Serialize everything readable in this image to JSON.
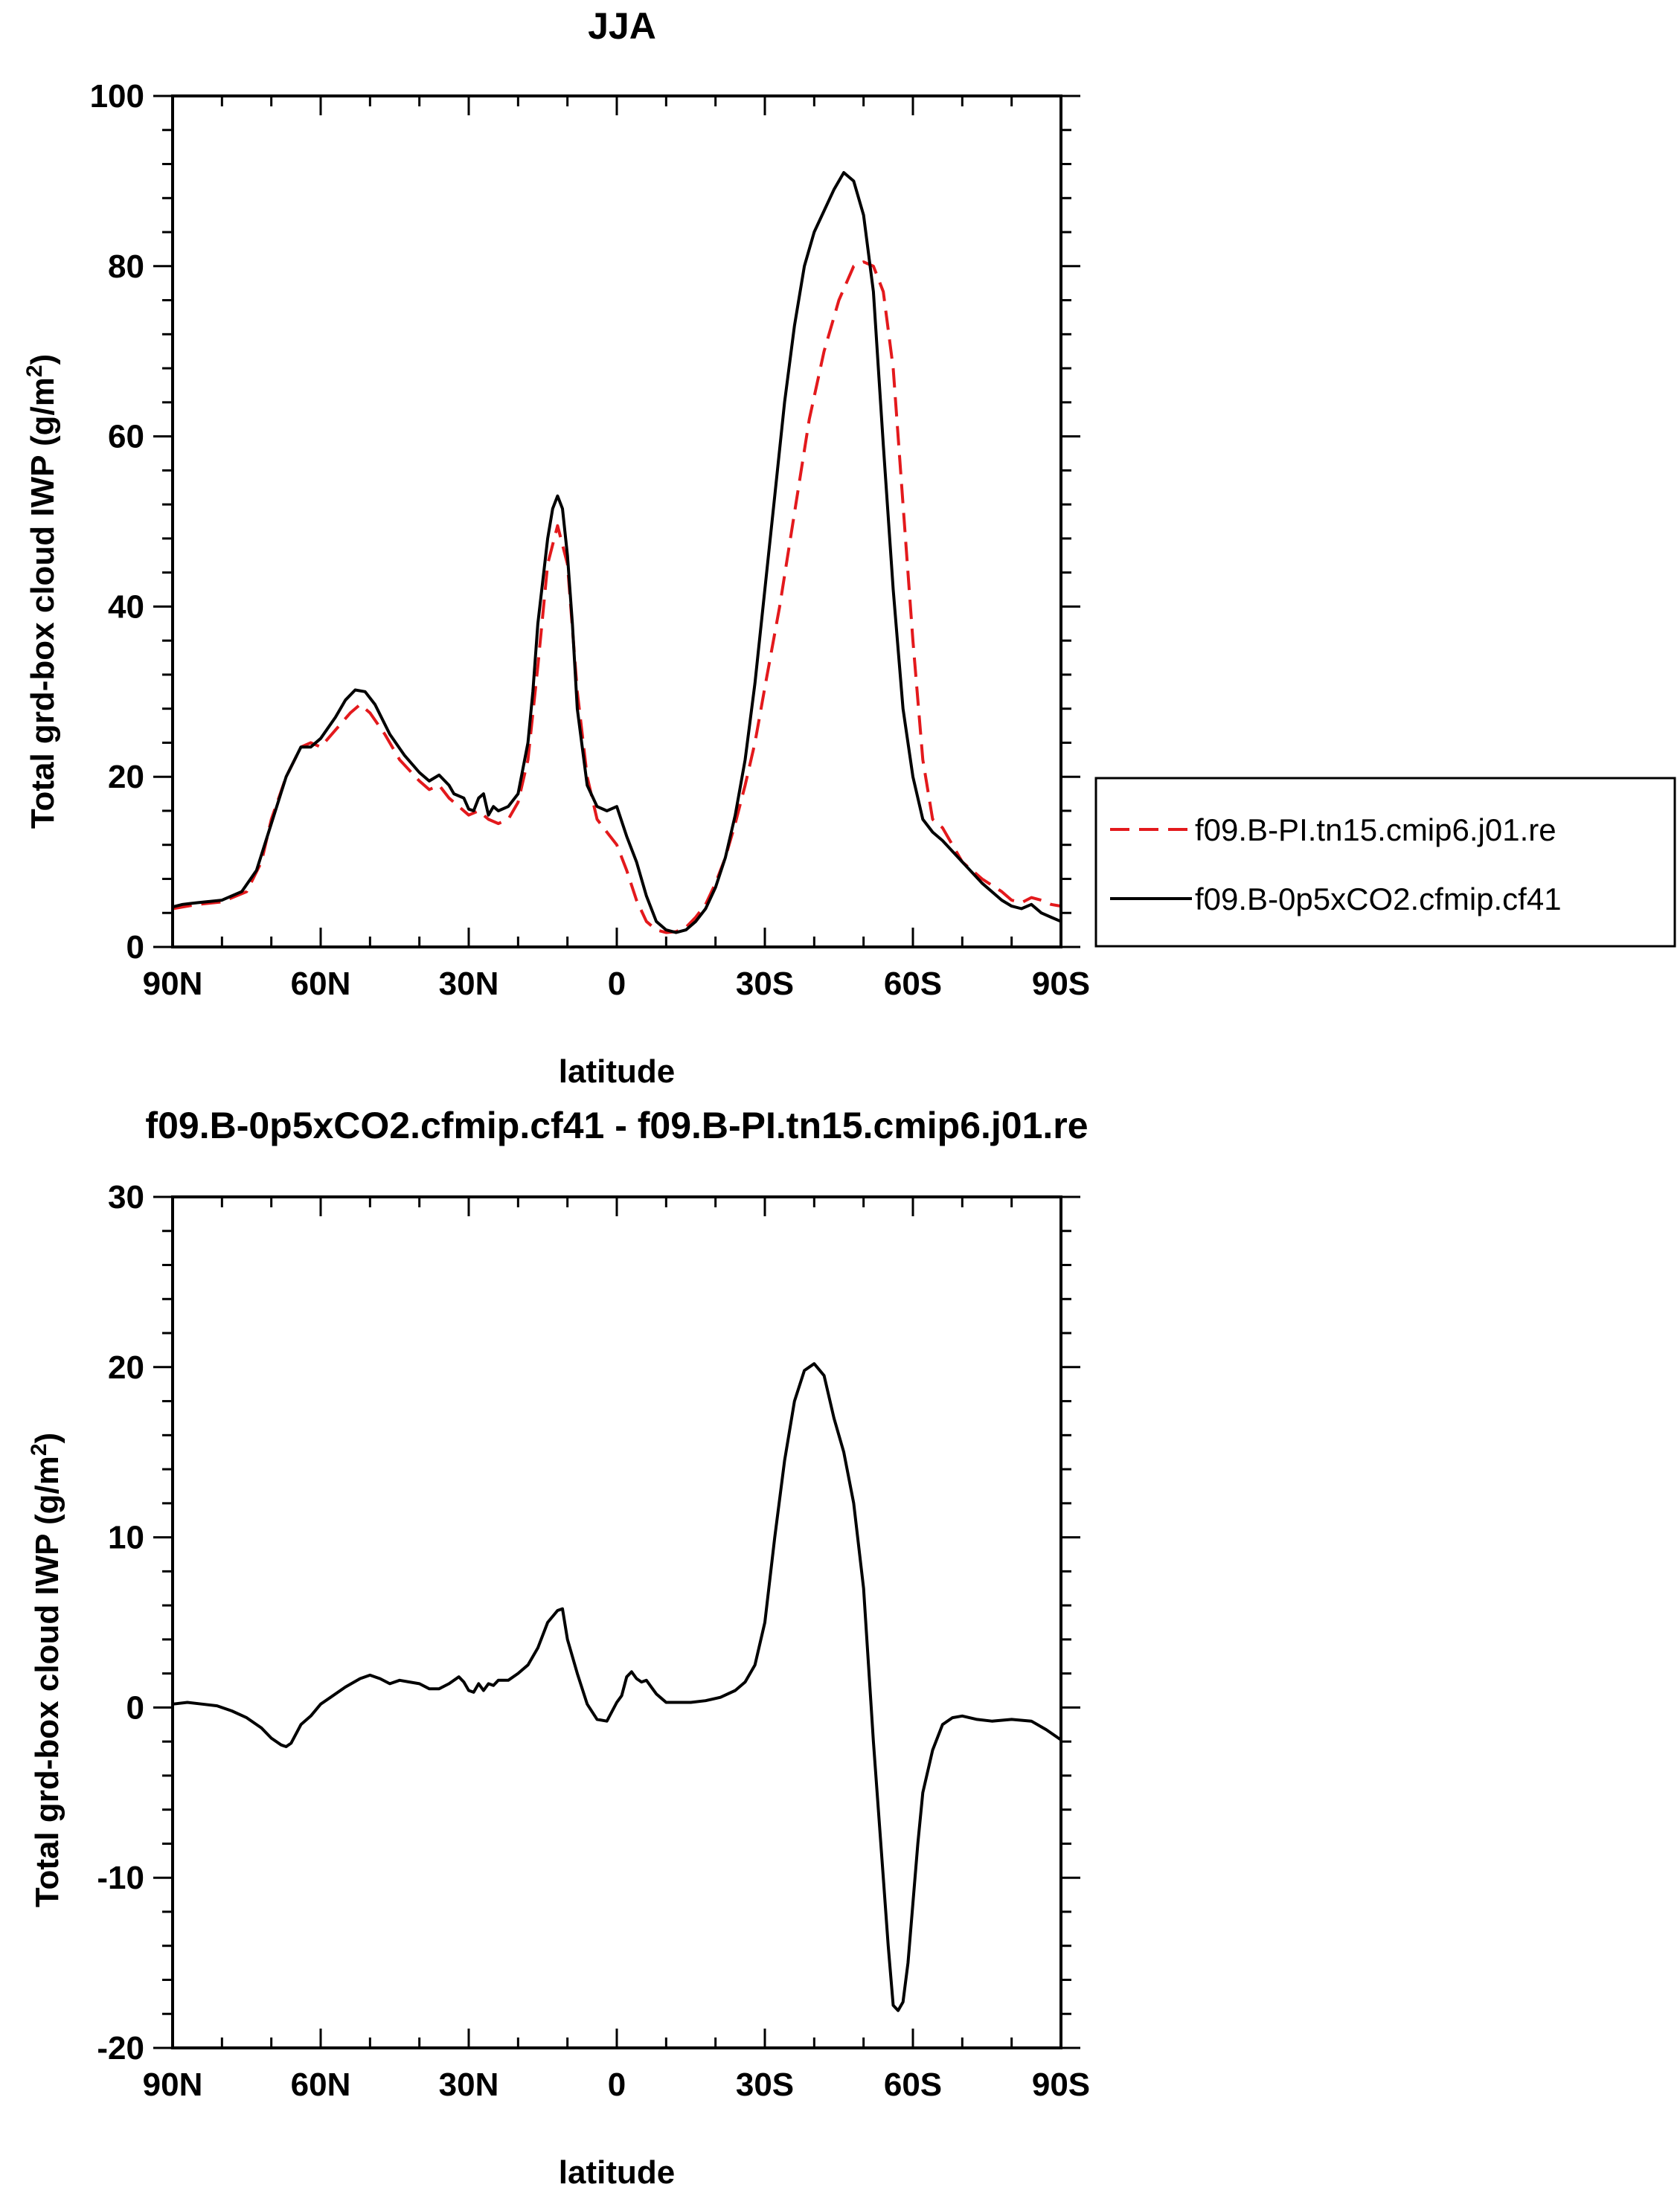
{
  "chart_data": [
    {
      "type": "line",
      "title": "JJA",
      "xlabel": "latitude",
      "ylabel": "Total grd-box cloud IWP (g/m²)",
      "ylabel_main": "Total grd-box cloud IWP (g/m",
      "ylabel_sup": "2",
      "ylabel_tail": ")",
      "xlim": [
        90,
        -90
      ],
      "ylim": [
        0,
        100
      ],
      "x_tick_values": [
        90,
        60,
        30,
        0,
        -30,
        -60,
        -90
      ],
      "x_tick_labels": [
        "90N",
        "60N",
        "30N",
        "0",
        "30S",
        "60S",
        "90S"
      ],
      "y_tick_values": [
        0,
        20,
        40,
        60,
        80,
        100
      ],
      "y_tick_labels": [
        "0",
        "20",
        "40",
        "60",
        "80",
        "100"
      ],
      "legend_position": "right-middle",
      "series": [
        {
          "name": "f09.B-PI.tn15.cmip6.j01.re",
          "color": "#e3191c",
          "dash": "dashed",
          "x": [
            90,
            85,
            80,
            75,
            72,
            70,
            67,
            64,
            62,
            60,
            57,
            54,
            52,
            50,
            47,
            44,
            40,
            38,
            36,
            34,
            32,
            30,
            28,
            26,
            24,
            22,
            20,
            18,
            16,
            14,
            12,
            10,
            8,
            6,
            4,
            2,
            0,
            -2,
            -4,
            -6,
            -8,
            -10,
            -12,
            -14,
            -16,
            -18,
            -20,
            -22,
            -24,
            -26,
            -28,
            -30,
            -33,
            -36,
            -39,
            -42,
            -45,
            -48,
            -50,
            -52,
            -54,
            -56,
            -58,
            -60,
            -62,
            -64,
            -66,
            -70,
            -74,
            -78,
            -80,
            -82,
            -84,
            -86,
            -88,
            -90
          ],
          "y": [
            4.5,
            5.0,
            5.3,
            6.5,
            10.0,
            15.0,
            20.0,
            23.5,
            24.0,
            23.5,
            25.5,
            27.5,
            28.5,
            27.5,
            25.0,
            22.0,
            19.5,
            18.5,
            19.0,
            17.5,
            16.5,
            15.5,
            16.0,
            15.0,
            14.5,
            15.0,
            17.0,
            22.0,
            33.0,
            45.0,
            49.5,
            45.0,
            30.0,
            20.0,
            15.0,
            13.5,
            12.0,
            9.0,
            5.5,
            3.0,
            2.0,
            1.7,
            1.8,
            2.3,
            3.5,
            5.0,
            7.5,
            10.5,
            14.5,
            19.0,
            24.0,
            30.5,
            40.0,
            51.0,
            62.0,
            70.0,
            76.0,
            80.0,
            80.5,
            80.0,
            77.0,
            68.0,
            52.0,
            36.0,
            22.0,
            15.0,
            14.0,
            10.0,
            8.0,
            6.5,
            5.5,
            5.2,
            5.8,
            5.5,
            5.0,
            4.8
          ]
        },
        {
          "name": "f09.B-0p5xCO2.cfmip.cf41",
          "color": "#000000",
          "dash": "solid",
          "x": [
            90,
            88,
            85,
            80,
            76,
            73,
            70,
            67,
            64,
            62,
            60,
            57,
            55,
            53,
            51,
            49,
            46,
            43,
            40,
            38,
            36,
            34,
            33,
            31,
            30,
            29,
            28,
            27,
            26,
            25,
            24,
            22,
            20,
            18,
            17,
            16,
            14,
            13,
            12,
            11,
            10,
            9,
            8,
            6,
            4,
            2,
            0,
            -2,
            -4,
            -6,
            -8,
            -10,
            -12,
            -14,
            -16,
            -18,
            -20,
            -22,
            -24,
            -26,
            -28,
            -30,
            -32,
            -34,
            -36,
            -38,
            -40,
            -42,
            -44,
            -46,
            -48,
            -50,
            -52,
            -54,
            -56,
            -58,
            -60,
            -62,
            -64,
            -66,
            -70,
            -74,
            -78,
            -80,
            -82,
            -84,
            -86,
            -88,
            -90
          ],
          "y": [
            4.7,
            5.0,
            5.2,
            5.5,
            6.5,
            9.0,
            14.5,
            20.0,
            23.5,
            23.5,
            24.5,
            27.0,
            29.0,
            30.2,
            30.0,
            28.5,
            25.0,
            22.5,
            20.5,
            19.5,
            20.2,
            19.0,
            18.0,
            17.5,
            16.2,
            16.0,
            17.5,
            18.0,
            15.5,
            16.5,
            16.0,
            16.5,
            18.0,
            24.0,
            30.0,
            38.0,
            48.0,
            51.5,
            53.0,
            51.5,
            46.0,
            38.0,
            28.0,
            19.0,
            16.5,
            16.0,
            16.5,
            13.0,
            10.0,
            6.0,
            3.0,
            2.0,
            1.7,
            2.0,
            3.0,
            4.5,
            7.0,
            10.5,
            15.5,
            22.0,
            31.0,
            42.0,
            53.0,
            64.0,
            73.0,
            80.0,
            84.0,
            86.5,
            89.0,
            91.0,
            90.0,
            86.0,
            77.0,
            59.0,
            42.0,
            28.0,
            20.0,
            15.0,
            13.5,
            12.5,
            10.0,
            7.5,
            5.5,
            4.8,
            4.5,
            5.0,
            4.0,
            3.5,
            3.0
          ]
        }
      ]
    },
    {
      "type": "line",
      "title": "f09.B-0p5xCO2.cfmip.cf41 - f09.B-PI.tn15.cmip6.j01.re",
      "xlabel": "latitude",
      "ylabel": "Total grd-box cloud IWP (g/m²)",
      "ylabel_main": "Total grd-box cloud IWP (g/m",
      "ylabel_sup": "2",
      "ylabel_tail": ")",
      "xlim": [
        90,
        -90
      ],
      "ylim": [
        -20,
        30
      ],
      "x_tick_values": [
        90,
        60,
        30,
        0,
        -30,
        -60,
        -90
      ],
      "x_tick_labels": [
        "90N",
        "60N",
        "30N",
        "0",
        "30S",
        "60S",
        "90S"
      ],
      "y_tick_values": [
        -20,
        -10,
        0,
        10,
        20,
        30
      ],
      "y_tick_labels": [
        "-20",
        "-10",
        "0",
        "10",
        "20",
        "30"
      ],
      "series": [
        {
          "color": "#000000",
          "dash": "solid",
          "x": [
            90,
            87,
            84,
            81,
            78,
            75,
            72,
            70,
            68,
            67,
            66,
            64,
            62,
            60,
            58,
            55,
            52,
            50,
            48,
            46,
            44,
            42,
            40,
            38,
            36,
            34,
            32,
            31,
            30,
            29,
            28,
            27,
            26,
            25,
            24,
            22,
            20,
            18,
            16,
            14,
            12,
            11,
            10,
            8,
            6,
            4,
            2,
            0,
            -1,
            -2,
            -3,
            -4,
            -5,
            -6,
            -7,
            -8,
            -10,
            -12,
            -15,
            -18,
            -21,
            -24,
            -26,
            -28,
            -30,
            -32,
            -34,
            -36,
            -38,
            -40,
            -42,
            -44,
            -46,
            -48,
            -50,
            -52,
            -54,
            -55,
            -56,
            -57,
            -58,
            -59,
            -60,
            -61,
            -62,
            -64,
            -66,
            -68,
            -70,
            -73,
            -76,
            -80,
            -84,
            -87,
            -90
          ],
          "y": [
            0.2,
            0.3,
            0.2,
            0.1,
            -0.2,
            -0.6,
            -1.2,
            -1.8,
            -2.2,
            -2.3,
            -2.1,
            -1.0,
            -0.5,
            0.2,
            0.6,
            1.2,
            1.7,
            1.9,
            1.7,
            1.4,
            1.6,
            1.5,
            1.4,
            1.1,
            1.1,
            1.4,
            1.8,
            1.5,
            1.0,
            0.9,
            1.4,
            1.0,
            1.4,
            1.3,
            1.6,
            1.6,
            2.0,
            2.5,
            3.5,
            5.0,
            5.7,
            5.8,
            4.0,
            2.0,
            0.2,
            -0.7,
            -0.8,
            0.3,
            0.7,
            1.8,
            2.1,
            1.7,
            1.5,
            1.6,
            1.2,
            0.8,
            0.3,
            0.3,
            0.3,
            0.4,
            0.6,
            1.0,
            1.5,
            2.5,
            5.0,
            10.0,
            14.5,
            18.0,
            19.8,
            20.2,
            19.5,
            17.0,
            15.0,
            12.0,
            7.0,
            -2.0,
            -10.0,
            -14.0,
            -17.5,
            -17.8,
            -17.3,
            -15.0,
            -11.5,
            -8.0,
            -5.0,
            -2.5,
            -1.0,
            -0.6,
            -0.5,
            -0.7,
            -0.8,
            -0.7,
            -0.8,
            -1.3,
            -1.9
          ]
        }
      ]
    }
  ]
}
